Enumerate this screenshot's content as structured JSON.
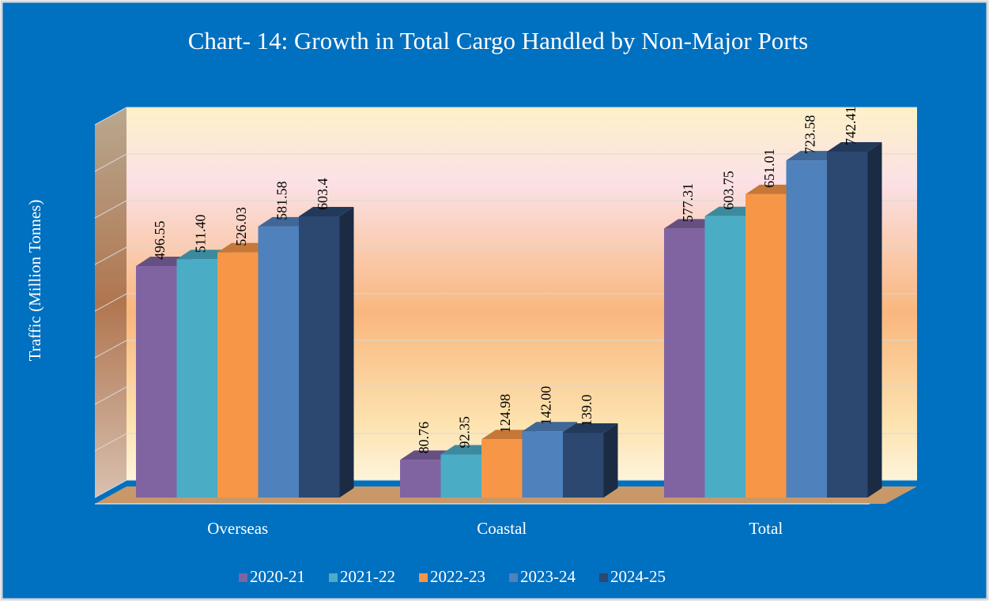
{
  "chart_data": {
    "type": "bar3d",
    "title": "Chart- 14: Growth in Total  Cargo Handled by Non-Major Ports",
    "y_label": "Traffic (Million Tonnes)",
    "categories": [
      "Overseas",
      "Coastal",
      "Total"
    ],
    "ylim": [
      0,
      800
    ],
    "yticks": [
      0,
      100,
      200,
      300,
      400,
      500,
      600,
      700,
      800
    ],
    "grid": true,
    "legend": "bottom",
    "series": [
      {
        "name": "2020-21",
        "color": "#8064a2",
        "values": [
          496.55,
          80.76,
          577.31
        ],
        "value_labels": [
          "496.55",
          "80.76",
          "577.31"
        ]
      },
      {
        "name": "2021-22",
        "color": "#4bacc6",
        "values": [
          511.4,
          92.35,
          603.75
        ],
        "value_labels": [
          "511.40",
          "92.35",
          "603.75"
        ]
      },
      {
        "name": "2022-23",
        "color": "#f79646",
        "values": [
          526.03,
          124.98,
          651.01
        ],
        "value_labels": [
          "526.03",
          "124.98",
          "651.01"
        ]
      },
      {
        "name": "2023-24",
        "color": "#4f81bd",
        "values": [
          581.58,
          142.0,
          723.58
        ],
        "value_labels": [
          "581.58",
          "142.00",
          "723.58"
        ]
      },
      {
        "name": "2024-25",
        "color": "#2c4770",
        "values": [
          603.4,
          139.0,
          742.41
        ],
        "value_labels": [
          "603.4",
          "139.0",
          "742.41"
        ]
      }
    ]
  }
}
